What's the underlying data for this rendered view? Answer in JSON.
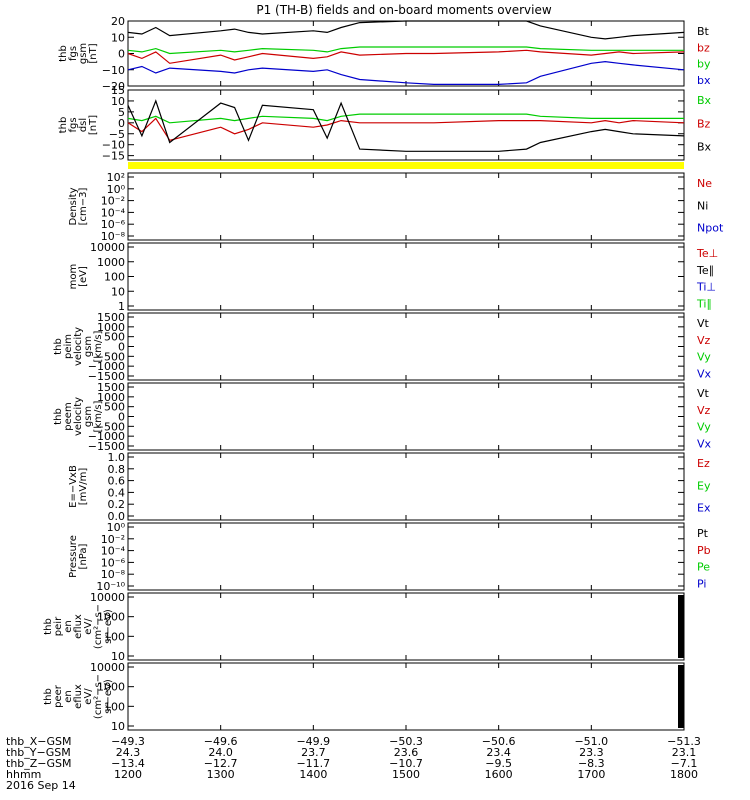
{
  "title": "P1 (TH-B) fields and on-board moments overview",
  "colors": {
    "black": "#000000",
    "red": "#cc0000",
    "green": "#00cc00",
    "blue": "#0000cc",
    "yellow": "#ffff00"
  },
  "chart_data": [
    {
      "id": "fgs-gsm",
      "type": "line",
      "ylabel": [
        "thb",
        "fgs",
        "gsm",
        "[nT]"
      ],
      "ylim": [
        -20,
        20
      ],
      "yticks": [
        "20",
        "10",
        "0",
        "−10",
        "−20"
      ],
      "ytick_values": [
        20,
        10,
        0,
        -10,
        -20
      ],
      "legend": [
        {
          "label": "Bt",
          "color": "black"
        },
        {
          "label": "bz",
          "color": "red"
        },
        {
          "label": "by",
          "color": "green"
        },
        {
          "label": "bx",
          "color": "blue"
        }
      ],
      "x": [
        1200,
        1215,
        1230,
        1245,
        1300,
        1315,
        1330,
        1345,
        1400,
        1415,
        1430,
        1450,
        1500,
        1530,
        1600,
        1630,
        1645,
        1700,
        1715,
        1730,
        1745,
        1800
      ],
      "series": [
        {
          "name": "Bt",
          "color": "black",
          "values": [
            13,
            12,
            16,
            11,
            14,
            15,
            13,
            12,
            14,
            13,
            16,
            19,
            20,
            20,
            20,
            20,
            17,
            10,
            9,
            10,
            11,
            13
          ]
        },
        {
          "name": "bz",
          "color": "red",
          "values": [
            0,
            -3,
            1,
            -6,
            -1,
            -4,
            -2,
            0,
            -3,
            -2,
            1,
            -1,
            0,
            0,
            1,
            2,
            1,
            -1,
            0,
            1,
            0,
            1
          ]
        },
        {
          "name": "by",
          "color": "green",
          "values": [
            2,
            1,
            3,
            0,
            2,
            1,
            2,
            3,
            2,
            1,
            3,
            4,
            4,
            4,
            4,
            4,
            3,
            2,
            2,
            2,
            2,
            2
          ]
        },
        {
          "name": "bx",
          "color": "blue",
          "values": [
            -10,
            -8,
            -12,
            -9,
            -11,
            -12,
            -10,
            -9,
            -11,
            -10,
            -13,
            -16,
            -18,
            -19,
            -19,
            -18,
            -14,
            -6,
            -5,
            -6,
            -7,
            -10
          ]
        }
      ]
    },
    {
      "id": "fgs-dsl",
      "type": "line",
      "ylabel": [
        "thb",
        "fgs",
        "dsl",
        "[nT]"
      ],
      "ylim": [
        -17,
        15
      ],
      "yticks": [
        "15",
        "10",
        "5",
        "0",
        "−5",
        "−10",
        "−15"
      ],
      "ytick_values": [
        15,
        10,
        5,
        0,
        -5,
        -10,
        -15
      ],
      "legend": [
        {
          "label": "Bx",
          "color": "green"
        },
        {
          "label": "Bz",
          "color": "red"
        },
        {
          "label": "Bx",
          "color": "black"
        }
      ],
      "x": [
        1200,
        1215,
        1230,
        1245,
        1300,
        1315,
        1330,
        1345,
        1400,
        1415,
        1430,
        1450,
        1500,
        1530,
        1600,
        1630,
        1645,
        1700,
        1715,
        1730,
        1745,
        1800
      ],
      "series": [
        {
          "name": "Bx",
          "color": "green",
          "values": [
            2,
            1,
            3,
            0,
            2,
            1,
            2,
            3,
            2,
            1,
            3,
            4,
            4,
            4,
            4,
            4,
            3,
            2,
            2,
            2,
            2,
            2
          ]
        },
        {
          "name": "Bz",
          "color": "red",
          "values": [
            0,
            -4,
            2,
            -8,
            -2,
            -5,
            -3,
            0,
            -2,
            -1,
            1,
            0,
            0,
            0,
            1,
            1,
            1,
            0,
            1,
            0,
            1,
            0
          ]
        },
        {
          "name": "Bx",
          "color": "black",
          "values": [
            8,
            -6,
            10,
            -9,
            9,
            7,
            -8,
            8,
            6,
            -7,
            9,
            -12,
            -13,
            -13,
            -13,
            -12,
            -9,
            -4,
            -3,
            -4,
            -5,
            -6
          ]
        }
      ]
    },
    {
      "id": "density",
      "type": "line",
      "ylabel": [
        "Density",
        "[cm−3]"
      ],
      "yticks": [
        "10²",
        "10⁰",
        "10⁻²",
        "10⁻⁴",
        "10⁻⁶",
        "10⁻⁸"
      ],
      "legend": [
        {
          "label": "Ne",
          "color": "red"
        },
        {
          "label": "Ni",
          "color": "black"
        },
        {
          "label": "Npot",
          "color": "blue"
        }
      ],
      "series": []
    },
    {
      "id": "temp",
      "type": "line",
      "ylabel": [
        "mom",
        "[eV]"
      ],
      "yticks": [
        "10000",
        "1000",
        "100",
        "10",
        "1"
      ],
      "legend": [
        {
          "label": "Te⊥",
          "color": "red"
        },
        {
          "label": "Te∥",
          "color": "black"
        },
        {
          "label": "Ti⊥",
          "color": "blue"
        },
        {
          "label": "Ti∥",
          "color": "green"
        }
      ],
      "series": []
    },
    {
      "id": "peim-vel",
      "type": "line",
      "ylabel": [
        "thb",
        "peim",
        "velocity",
        "gsm",
        "[km/s]"
      ],
      "yticks": [
        "1500",
        "1000",
        "500",
        "0",
        "−500",
        "−1000",
        "−1500"
      ],
      "legend": [
        {
          "label": "Vt",
          "color": "black"
        },
        {
          "label": "Vz",
          "color": "red"
        },
        {
          "label": "Vy",
          "color": "green"
        },
        {
          "label": "Vx",
          "color": "blue"
        }
      ],
      "series": []
    },
    {
      "id": "peem-vel",
      "type": "line",
      "ylabel": [
        "thb",
        "peem",
        "velocity",
        "gsm",
        "[km/s]"
      ],
      "yticks": [
        "1500",
        "1000",
        "500",
        "0",
        "−500",
        "−1000",
        "−1500"
      ],
      "legend": [
        {
          "label": "Vt",
          "color": "black"
        },
        {
          "label": "Vz",
          "color": "red"
        },
        {
          "label": "Vy",
          "color": "green"
        },
        {
          "label": "Vx",
          "color": "blue"
        }
      ],
      "series": []
    },
    {
      "id": "efield",
      "type": "line",
      "ylabel": [
        "E=−VxB",
        "[mV/m]"
      ],
      "yticks": [
        "1.0",
        "0.8",
        "0.6",
        "0.4",
        "0.2",
        "0.0"
      ],
      "legend": [
        {
          "label": "Ez",
          "color": "red"
        },
        {
          "label": "Ey",
          "color": "green"
        },
        {
          "label": "Ex",
          "color": "blue"
        }
      ],
      "series": []
    },
    {
      "id": "pressure",
      "type": "line",
      "ylabel": [
        "Pressure",
        "[nPa]"
      ],
      "yticks": [
        "10⁰",
        "10⁻²",
        "10⁻⁴",
        "10⁻⁶",
        "10⁻⁸",
        "10⁻¹⁰"
      ],
      "legend": [
        {
          "label": "Pt",
          "color": "black"
        },
        {
          "label": "Pb",
          "color": "red"
        },
        {
          "label": "Pe",
          "color": "green"
        },
        {
          "label": "Pi",
          "color": "blue"
        }
      ],
      "series": []
    },
    {
      "id": "peir-eflux",
      "type": "heatmap",
      "ylabel": [
        "thb",
        "peir",
        "en",
        "eflux",
        "eV/",
        "(cm²−s−",
        "sr−eV)"
      ],
      "yticks": [
        "10000",
        "1000",
        "100",
        "10"
      ],
      "legend": [],
      "series": []
    },
    {
      "id": "peer-eflux",
      "type": "heatmap",
      "ylabel": [
        "thb",
        "peer",
        "en",
        "eflux",
        "eV/",
        "(cm²−s−",
        "sr−eV)"
      ],
      "yticks": [
        "10000",
        "1000",
        "100",
        "10"
      ],
      "legend": [],
      "series": []
    }
  ],
  "xaxis": {
    "rows": [
      {
        "label": "thb_X−GSM",
        "values": [
          "−49.3",
          "−49.6",
          "−49.9",
          "−50.3",
          "−50.6",
          "−51.0",
          "−51.3"
        ]
      },
      {
        "label": "thb_Y−GSM",
        "values": [
          "24.3",
          "24.0",
          "23.7",
          "23.6",
          "23.4",
          "23.3",
          "23.1"
        ]
      },
      {
        "label": "thb_Z−GSM",
        "values": [
          "−13.4",
          "−12.7",
          "−11.7",
          "−10.7",
          "−9.5",
          "−8.3",
          "−7.1"
        ]
      },
      {
        "label": "hhmm",
        "values": [
          "1200",
          "1300",
          "1400",
          "1500",
          "1600",
          "1700",
          "1800"
        ]
      }
    ],
    "date": "2016 Sep 14",
    "range": [
      1200,
      1800
    ]
  }
}
